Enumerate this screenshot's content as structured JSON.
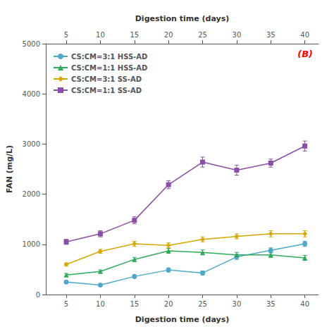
{
  "chart_data": {
    "type": "line",
    "xlabel": "Digestion time (days)",
    "ylabel": "FAN (mg/L)",
    "x2label": "Digestion time (days)",
    "x": [
      5,
      10,
      15,
      20,
      25,
      30,
      35,
      40
    ],
    "series": [
      {
        "name": "CS:CM=3:1 HSS-AD",
        "color": "#4CA8C8",
        "marker": "circle",
        "values": [
          250,
          190,
          360,
          490,
          430,
          750,
          880,
          1010
        ],
        "errors": [
          30,
          25,
          30,
          40,
          40,
          50,
          50,
          50
        ]
      },
      {
        "name": "CS:CM=1:1 HSS-AD",
        "color": "#2DAA5A",
        "marker": "triangle",
        "values": [
          390,
          460,
          700,
          870,
          840,
          790,
          790,
          730
        ],
        "errors": [
          30,
          30,
          40,
          50,
          50,
          50,
          50,
          50
        ]
      },
      {
        "name": "CS:CM=3:1 SS-AD",
        "color": "#D4A800",
        "marker": "diamond",
        "values": [
          600,
          860,
          1010,
          980,
          1100,
          1160,
          1210,
          1210
        ],
        "errors": [
          30,
          40,
          50,
          50,
          50,
          50,
          60,
          60
        ]
      },
      {
        "name": "CS:CM=1:1 SS-AD",
        "color": "#8B4EA6",
        "marker": "square",
        "values": [
          1050,
          1210,
          1480,
          2190,
          2640,
          2480,
          2620,
          2960
        ],
        "errors": [
          50,
          60,
          70,
          80,
          100,
          100,
          80,
          100
        ]
      }
    ],
    "xlim": [
      2,
      42
    ],
    "xticks": [
      5,
      10,
      15,
      20,
      25,
      30,
      35,
      40
    ],
    "x2lim": [
      2,
      42
    ],
    "x2ticks": [
      5,
      10,
      15,
      20,
      25,
      30,
      35,
      40
    ],
    "ylim": [
      0,
      5000
    ],
    "yticks": [
      0,
      1000,
      2000,
      3000,
      4000,
      5000
    ],
    "annotations": [
      {
        "text": "(B)",
        "color": "#FF0000"
      }
    ],
    "legend": "upper left",
    "grid": false
  }
}
